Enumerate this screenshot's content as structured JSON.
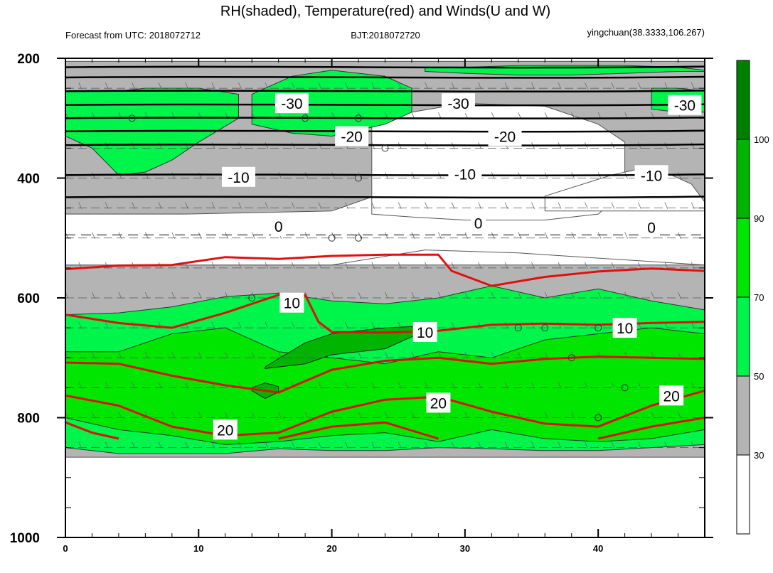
{
  "chart_data": {
    "type": "heatmap",
    "title": "RH(shaded), Temperature(red) and Winds(U and W)",
    "subtitle_left": "Forecast from UTC: 2018072712",
    "subtitle_center": "BJT:2018072720",
    "subtitle_right": "yingchuan(38.3333,106.267)",
    "xlabel": "",
    "ylabel": "",
    "xlim": [
      0,
      48
    ],
    "ylim": [
      1000,
      200
    ],
    "x_ticks": [
      0,
      10,
      20,
      30,
      40
    ],
    "y_ticks": [
      200,
      400,
      600,
      800,
      1000
    ],
    "colorbar": {
      "levels": [
        30,
        50,
        70,
        90,
        100
      ],
      "labels": [
        "30",
        "50",
        "70",
        "90",
        "100"
      ],
      "colors": [
        "#ffffff",
        "#b4b4b4",
        "#00f54a",
        "#00e600",
        "#00b400",
        "#008000"
      ]
    },
    "rh_bands": {
      "gray": [
        {
          "x": [
            0,
            48
          ],
          "top": [
            205,
            205
          ],
          "bottom": [
            460,
            460
          ]
        },
        {
          "x": [
            0,
            48
          ],
          "top": [
            545,
            545
          ],
          "bottom": [
            866,
            866
          ]
        }
      ],
      "white_holes": [
        {
          "x": [
            0,
            9,
            20,
            27,
            34,
            48
          ],
          "top": [
            460,
            460,
            455,
            400,
            430,
            450
          ],
          "bottom": [
            545,
            545,
            545,
            520,
            525,
            545
          ]
        },
        {
          "x": [
            23,
            26,
            30,
            36,
            40,
            42
          ],
          "top": [
            310,
            290,
            275,
            280,
            310,
            340
          ],
          "bottom": [
            460,
            465,
            470,
            470,
            460,
            420
          ]
        },
        {
          "x": [
            36,
            41,
            44,
            47,
            48
          ],
          "top": [
            430,
            395,
            380,
            410,
            440
          ],
          "bottom": [
            455,
            455,
            455,
            455,
            455
          ]
        }
      ],
      "green_upper": [
        {
          "x": [
            0,
            2,
            4,
            6,
            8,
            10,
            13
          ],
          "top": [
            255,
            255,
            255,
            250,
            250,
            250,
            260
          ],
          "bottom": [
            330,
            350,
            395,
            390,
            370,
            340,
            300
          ]
        },
        {
          "x": [
            14,
            17,
            20,
            24,
            26
          ],
          "top": [
            260,
            230,
            220,
            230,
            250
          ],
          "bottom": [
            310,
            325,
            330,
            310,
            290
          ]
        },
        {
          "x": [
            27,
            30,
            34,
            38,
            42,
            46,
            48
          ],
          "top": [
            215,
            215,
            212,
            212,
            212,
            215,
            220
          ],
          "bottom": [
            222,
            225,
            228,
            228,
            225,
            222,
            222
          ]
        },
        {
          "x": [
            44,
            46,
            48
          ],
          "top": [
            250,
            250,
            255
          ],
          "bottom": [
            285,
            290,
            290
          ]
        }
      ],
      "green_lower": [
        {
          "x": [
            0,
            4,
            8,
            12,
            16,
            20,
            24,
            28,
            32,
            36,
            40,
            44,
            48
          ],
          "top": [
            628,
            625,
            615,
            598,
            592,
            605,
            610,
            600,
            580,
            600,
            585,
            605,
            620
          ],
          "bottom": [
            850,
            860,
            860,
            860,
            852,
            855,
            855,
            850,
            852,
            855,
            855,
            850,
            845
          ]
        }
      ],
      "green_mid": [
        {
          "x": [
            0,
            4,
            8,
            12,
            16,
            20,
            24,
            28,
            32,
            36,
            40,
            44,
            48
          ],
          "top": [
            690,
            690,
            660,
            650,
            690,
            700,
            710,
            690,
            700,
            670,
            660,
            650,
            660
          ],
          "bottom": [
            800,
            820,
            830,
            845,
            840,
            830,
            825,
            840,
            820,
            835,
            840,
            835,
            820
          ]
        }
      ],
      "green_dark": [
        {
          "x": [
            15,
            18,
            20,
            22,
            24,
            26,
            27
          ],
          "top": [
            715,
            675,
            660,
            655,
            650,
            648,
            655
          ],
          "bottom": [
            718,
            710,
            695,
            690,
            685,
            665,
            662
          ]
        },
        {
          "x": [
            14,
            15,
            16
          ],
          "top": [
            750,
            742,
            748
          ],
          "bottom": [
            755,
            768,
            757
          ]
        }
      ]
    },
    "temperature_contours": [
      {
        "label": "10",
        "color": "red",
        "x": [
          0,
          4,
          8,
          12,
          16,
          20,
          24,
          28,
          29,
          32,
          36,
          40,
          44,
          48
        ],
        "y": [
          552,
          546,
          545,
          532,
          535,
          530,
          528,
          528,
          555,
          580,
          565,
          556,
          551,
          555
        ]
      },
      {
        "label": "10",
        "color": "red",
        "x": [
          0,
          4,
          8,
          12,
          16,
          18,
          19,
          20,
          24,
          28,
          32,
          36,
          40,
          44,
          48
        ],
        "y": [
          628,
          642,
          650,
          625,
          595,
          595,
          640,
          657,
          658,
          655,
          645,
          643,
          645,
          642,
          640
        ]
      },
      {
        "label": "",
        "color": "red",
        "x": [
          0,
          4,
          8,
          12,
          16,
          20,
          24,
          28,
          32,
          36,
          40,
          44,
          48
        ],
        "y": [
          708,
          710,
          730,
          746,
          758,
          720,
          705,
          700,
          710,
          702,
          698,
          700,
          702
        ]
      },
      {
        "label": "20",
        "color": "red",
        "x": [
          0,
          4,
          8,
          12,
          16,
          20,
          24,
          28,
          32,
          36,
          40,
          44,
          48
        ],
        "y": [
          763,
          780,
          815,
          830,
          825,
          790,
          770,
          765,
          790,
          810,
          815,
          780,
          755
        ]
      },
      {
        "label": "",
        "color": "red",
        "x": [
          0,
          2,
          4
        ],
        "y": [
          808,
          825,
          835
        ]
      },
      {
        "label": "",
        "color": "red",
        "x": [
          16,
          20,
          24,
          28
        ],
        "y": [
          835,
          815,
          808,
          835
        ]
      },
      {
        "label": "",
        "color": "red",
        "x": [
          40,
          44,
          48
        ],
        "y": [
          835,
          815,
          800
        ]
      }
    ],
    "isotherms_black": [
      {
        "label": "",
        "y": 215
      },
      {
        "label": "",
        "y": 232
      },
      {
        "label": "-30",
        "y": 255
      },
      {
        "label": "",
        "y": 278
      },
      {
        "label": "",
        "y": 300
      },
      {
        "label": "-20",
        "y": 322
      },
      {
        "label": "",
        "y": 345
      },
      {
        "label": "-10",
        "y": 395
      },
      {
        "label": "",
        "y": 432
      },
      {
        "label": "0",
        "y": 495
      }
    ],
    "contour_labels": [
      {
        "text": "-30",
        "x": 17,
        "p": 275
      },
      {
        "text": "-30",
        "x": 29.5,
        "p": 275
      },
      {
        "text": "-30",
        "x": 46.5,
        "p": 278
      },
      {
        "text": "-20",
        "x": 21.5,
        "p": 330
      },
      {
        "text": "-20",
        "x": 33,
        "p": 330
      },
      {
        "text": "-10",
        "x": 13,
        "p": 398
      },
      {
        "text": "-10",
        "x": 30,
        "p": 393
      },
      {
        "text": "-10",
        "x": 44,
        "p": 395
      },
      {
        "text": "0",
        "x": 16,
        "p": 480
      },
      {
        "text": "0",
        "x": 31,
        "p": 475
      },
      {
        "text": "0",
        "x": 44,
        "p": 482
      },
      {
        "text": "10",
        "x": 17,
        "p": 608
      },
      {
        "text": "10",
        "x": 27,
        "p": 657
      },
      {
        "text": "10",
        "x": 42,
        "p": 650
      },
      {
        "text": "20",
        "x": 12,
        "p": 820
      },
      {
        "text": "20",
        "x": 28,
        "p": 775
      },
      {
        "text": "20",
        "x": 45.5,
        "p": 763
      }
    ],
    "calm_markers": [
      {
        "x": 5,
        "p": 300
      },
      {
        "x": 18,
        "p": 300
      },
      {
        "x": 22,
        "p": 300
      },
      {
        "x": 24,
        "p": 350
      },
      {
        "x": 22,
        "p": 400
      },
      {
        "x": 20,
        "p": 500
      },
      {
        "x": 22,
        "p": 500
      },
      {
        "x": 14,
        "p": 600
      },
      {
        "x": 34,
        "p": 650
      },
      {
        "x": 36,
        "p": 650
      },
      {
        "x": 40,
        "p": 650
      },
      {
        "x": 38,
        "p": 700
      },
      {
        "x": 42,
        "p": 750
      },
      {
        "x": 40,
        "p": 800
      }
    ],
    "wind_levels": [
      200,
      250,
      300,
      350,
      400,
      450,
      500,
      550,
      600,
      650,
      700,
      750,
      800,
      850
    ]
  }
}
